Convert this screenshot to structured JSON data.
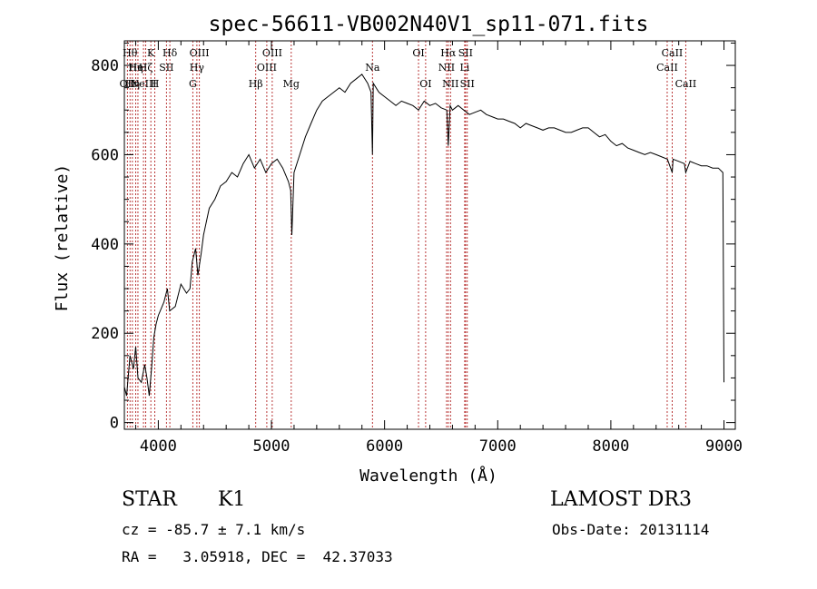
{
  "chart_data": {
    "type": "line",
    "title": "spec-56611-VB002N40V1_sp11-071.fits",
    "xlabel": "Wavelength (Å)",
    "ylabel": "Flux (relative)",
    "xlim": [
      3700,
      9100
    ],
    "ylim": [
      -15,
      855
    ],
    "x_ticks": [
      {
        "value": 4000,
        "label": "4000"
      },
      {
        "value": 5000,
        "label": "5000"
      },
      {
        "value": 6000,
        "label": "6000"
      },
      {
        "value": 7000,
        "label": "7000"
      },
      {
        "value": 8000,
        "label": "8000"
      },
      {
        "value": 9000,
        "label": "9000"
      }
    ],
    "y_ticks": [
      {
        "value": 0,
        "label": "0"
      },
      {
        "value": 200,
        "label": "200"
      },
      {
        "value": 400,
        "label": "400"
      },
      {
        "value": 600,
        "label": "600"
      },
      {
        "value": 800,
        "label": "800"
      }
    ],
    "series": [
      {
        "name": "flux",
        "x": [
          3700,
          3720,
          3750,
          3780,
          3800,
          3820,
          3850,
          3880,
          3900,
          3920,
          3940,
          3960,
          3980,
          4000,
          4050,
          4080,
          4100,
          4150,
          4200,
          4250,
          4280,
          4300,
          4330,
          4350,
          4380,
          4400,
          4450,
          4500,
          4550,
          4600,
          4650,
          4700,
          4750,
          4800,
          4850,
          4900,
          4950,
          5000,
          5050,
          5100,
          5150,
          5170,
          5180,
          5200,
          5250,
          5300,
          5350,
          5400,
          5450,
          5500,
          5550,
          5600,
          5650,
          5700,
          5750,
          5800,
          5850,
          5880,
          5893,
          5900,
          5950,
          6000,
          6050,
          6100,
          6150,
          6200,
          6250,
          6300,
          6350,
          6400,
          6450,
          6500,
          6550,
          6563,
          6580,
          6600,
          6650,
          6700,
          6750,
          6800,
          6850,
          6900,
          6950,
          7000,
          7050,
          7100,
          7150,
          7200,
          7250,
          7300,
          7350,
          7400,
          7450,
          7500,
          7550,
          7600,
          7650,
          7700,
          7750,
          7800,
          7850,
          7900,
          7950,
          8000,
          8050,
          8100,
          8150,
          8200,
          8250,
          8300,
          8350,
          8400,
          8450,
          8500,
          8542,
          8550,
          8600,
          8650,
          8662,
          8700,
          8750,
          8800,
          8850,
          8900,
          8950,
          8990,
          9000
        ],
        "values": [
          80,
          60,
          150,
          120,
          170,
          100,
          90,
          130,
          100,
          60,
          120,
          190,
          220,
          240,
          270,
          300,
          250,
          260,
          310,
          290,
          300,
          360,
          390,
          330,
          380,
          420,
          480,
          500,
          530,
          540,
          560,
          550,
          580,
          600,
          570,
          590,
          560,
          580,
          590,
          570,
          540,
          520,
          420,
          560,
          600,
          640,
          670,
          700,
          720,
          730,
          740,
          750,
          740,
          760,
          770,
          780,
          760,
          740,
          600,
          760,
          740,
          730,
          720,
          710,
          720,
          715,
          710,
          700,
          720,
          710,
          715,
          705,
          700,
          620,
          710,
          700,
          710,
          700,
          690,
          695,
          700,
          690,
          685,
          680,
          680,
          675,
          670,
          660,
          670,
          665,
          660,
          655,
          660,
          660,
          655,
          650,
          650,
          655,
          660,
          660,
          650,
          640,
          645,
          630,
          620,
          625,
          615,
          610,
          605,
          600,
          605,
          600,
          595,
          590,
          560,
          590,
          585,
          580,
          560,
          585,
          580,
          575,
          575,
          570,
          570,
          560,
          90
        ]
      }
    ],
    "line_markers": [
      {
        "wavelength": 3727,
        "label": "OII",
        "row": 3
      },
      {
        "wavelength": 3750,
        "label": "Hθ",
        "row": 1
      },
      {
        "wavelength": 3771,
        "label": "Hη",
        "row": 3
      },
      {
        "wavelength": 3800,
        "label": "Hη",
        "row": 2
      },
      {
        "wavelength": 3820,
        "label": "HeI",
        "row": 2
      },
      {
        "wavelength": 3869,
        "label": "NeIII",
        "row": 3
      },
      {
        "wavelength": 3889,
        "label": "Hζ",
        "row": 2
      },
      {
        "wavelength": 3934,
        "label": "K",
        "row": 1
      },
      {
        "wavelength": 3969,
        "label": "H",
        "row": 3
      },
      {
        "wavelength": 4072,
        "label": "SII",
        "row": 2
      },
      {
        "wavelength": 4102,
        "label": "Hδ",
        "row": 1
      },
      {
        "wavelength": 4305,
        "label": "G",
        "row": 3
      },
      {
        "wavelength": 4341,
        "label": "Hγ",
        "row": 2
      },
      {
        "wavelength": 4363,
        "label": "OIII",
        "row": 1
      },
      {
        "wavelength": 4861,
        "label": "Hβ",
        "row": 3
      },
      {
        "wavelength": 4959,
        "label": "OIII",
        "row": 2
      },
      {
        "wavelength": 5007,
        "label": "OIII",
        "row": 1
      },
      {
        "wavelength": 5175,
        "label": "Mg",
        "row": 3
      },
      {
        "wavelength": 5893,
        "label": "Na",
        "row": 2
      },
      {
        "wavelength": 6300,
        "label": "OI",
        "row": 1
      },
      {
        "wavelength": 6363,
        "label": "OI",
        "row": 3
      },
      {
        "wavelength": 6548,
        "label": "NII",
        "row": 2
      },
      {
        "wavelength": 6563,
        "label": "Hα",
        "row": 1
      },
      {
        "wavelength": 6583,
        "label": "NII",
        "row": 3
      },
      {
        "wavelength": 6708,
        "label": "Li",
        "row": 2
      },
      {
        "wavelength": 6716,
        "label": "SII",
        "row": 1
      },
      {
        "wavelength": 6731,
        "label": "SII",
        "row": 3
      },
      {
        "wavelength": 8498,
        "label": "CaII",
        "row": 2
      },
      {
        "wavelength": 8542,
        "label": "CaII",
        "row": 1
      },
      {
        "wavelength": 8662,
        "label": "CaII",
        "row": 3
      }
    ]
  },
  "info": {
    "class_label": "STAR",
    "subclass_label": "K1",
    "survey": "LAMOST DR3",
    "redshift_line": "cz = -85.7 ± 7.1 km/s",
    "obs_date_line": "Obs-Date: 20131114",
    "coords_line": "RA =   3.05918, DEC =  42.37033"
  },
  "colors": {
    "line_marker": "#b22222",
    "spectrum": "#000000"
  }
}
